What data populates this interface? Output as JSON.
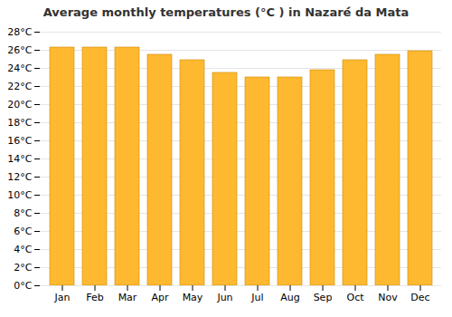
{
  "chart_data": {
    "type": "bar",
    "title": "Average monthly temperatures (°C ) in Nazaré́ da Mata",
    "categories": [
      "Jan",
      "Feb",
      "Mar",
      "Apr",
      "May",
      "Jun",
      "Jul",
      "Aug",
      "Sep",
      "Oct",
      "Nov",
      "Dec"
    ],
    "values": [
      26.3,
      26.3,
      26.3,
      25.5,
      24.9,
      23.5,
      23.0,
      23.0,
      23.8,
      24.9,
      25.5,
      25.9
    ],
    "color": "#FFB930",
    "ylim": [
      0,
      28
    ],
    "yticks": [
      {
        "value": 0,
        "label": "0°C"
      },
      {
        "value": 2,
        "label": "2°C"
      },
      {
        "value": 4,
        "label": "4°C"
      },
      {
        "value": 6,
        "label": "6°C"
      },
      {
        "value": 8,
        "label": "8°C"
      },
      {
        "value": 10,
        "label": "10°C"
      },
      {
        "value": 12,
        "label": "12°C"
      },
      {
        "value": 14,
        "label": "14°C"
      },
      {
        "value": 16,
        "label": "16°C"
      },
      {
        "value": 18,
        "label": "18°C"
      },
      {
        "value": 20,
        "label": "20°C"
      },
      {
        "value": 22,
        "label": "22°C"
      },
      {
        "value": 24,
        "label": "24°C"
      },
      {
        "value": 26,
        "label": "26°C"
      },
      {
        "value": 28,
        "label": "28°C"
      }
    ],
    "grid": true
  }
}
